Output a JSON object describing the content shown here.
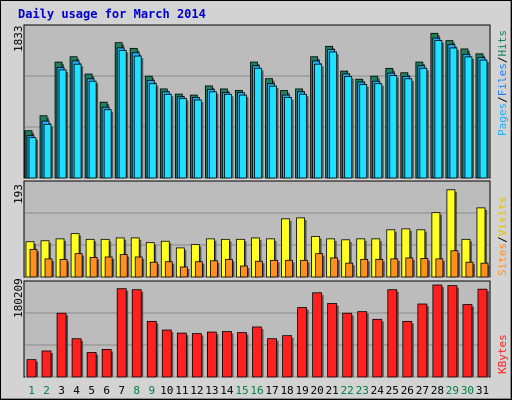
{
  "title": "Daily usage for March 2014",
  "colors": {
    "hits": "#1f7f5f",
    "pages": "#20e0ff",
    "files": "#20b0ff",
    "visits": "#ffff20",
    "sites": "#ff9020",
    "kbytes": "#ff2020",
    "plot_bg": "#bcbcbc",
    "weekend_label": "#008040",
    "weekday_label": "#000000"
  },
  "panels": {
    "top": {
      "max_label": "1833",
      "legend": [
        "Pages",
        "/",
        "Files",
        "/",
        "Hits"
      ]
    },
    "middle": {
      "max_label": "193",
      "legend": [
        "Sites",
        "/",
        "Visits"
      ]
    },
    "bottom": {
      "max_label": "180209",
      "legend": [
        "KBytes"
      ]
    }
  },
  "chart_data": {
    "type": "bar",
    "title": "Daily usage for March 2014",
    "categories": [
      "1",
      "2",
      "3",
      "4",
      "5",
      "6",
      "7",
      "8",
      "9",
      "10",
      "11",
      "12",
      "13",
      "14",
      "15",
      "16",
      "17",
      "18",
      "19",
      "20",
      "21",
      "22",
      "23",
      "24",
      "25",
      "26",
      "27",
      "28",
      "29",
      "30",
      "31"
    ],
    "weekend_days": [
      "1",
      "2",
      "8",
      "9",
      "15",
      "16",
      "22",
      "23",
      "29",
      "30"
    ],
    "series": [
      {
        "name": "Hits",
        "panel": "top",
        "ylim": [
          0,
          1833
        ],
        "values": [
          582,
          766,
          1426,
          1492,
          1279,
          933,
          1665,
          1595,
          1253,
          1096,
          1032,
          1020,
          1133,
          1096,
          1078,
          1426,
          1222,
          1076,
          1096,
          1492,
          1620,
          1315,
          1215,
          1253,
          1349,
          1295,
          1426,
          1780,
          1690,
          1588,
          1528
        ]
      },
      {
        "name": "Files",
        "panel": "top",
        "ylim": [
          0,
          1833
        ],
        "values": [
          520,
          700,
          1360,
          1440,
          1220,
          870,
          1600,
          1540,
          1200,
          1060,
          1000,
          990,
          1090,
          1050,
          1050,
          1380,
          1160,
          1020,
          1060,
          1440,
          1580,
          1280,
          1180,
          1190,
          1290,
          1250,
          1380,
          1720,
          1640,
          1520,
          1480
        ]
      },
      {
        "name": "Pages",
        "panel": "top",
        "ylim": [
          0,
          1833
        ],
        "values": [
          496,
          660,
          1330,
          1400,
          1190,
          840,
          1570,
          1500,
          1160,
          1030,
          980,
          960,
          1060,
          1030,
          1020,
          1350,
          1130,
          990,
          1030,
          1400,
          1550,
          1250,
          1150,
          1160,
          1260,
          1220,
          1350,
          1690,
          1600,
          1490,
          1450
        ]
      },
      {
        "name": "Visits",
        "panel": "middle",
        "ylim": [
          0,
          193
        ],
        "values": [
          74,
          76,
          80,
          91,
          79,
          79,
          82,
          82,
          72,
          75,
          61,
          68,
          80,
          79,
          79,
          82,
          80,
          122,
          124,
          85,
          80,
          78,
          80,
          80,
          99,
          101,
          99,
          135,
          183,
          79,
          145
        ]
      },
      {
        "name": "Sites",
        "panel": "middle",
        "ylim": [
          0,
          193
        ],
        "values": [
          58,
          38,
          37,
          49,
          41,
          42,
          47,
          42,
          31,
          32,
          21,
          32,
          34,
          37,
          23,
          33,
          35,
          35,
          35,
          49,
          40,
          29,
          37,
          37,
          38,
          40,
          39,
          38,
          55,
          31,
          29
        ]
      },
      {
        "name": "KBytes",
        "panel": "bottom",
        "ylim": [
          0,
          180209
        ],
        "values": [
          34000,
          51000,
          125000,
          75000,
          48000,
          54000,
          173000,
          171000,
          109000,
          92000,
          86000,
          85000,
          88000,
          89000,
          87000,
          98000,
          75000,
          81000,
          136000,
          165000,
          144000,
          125000,
          128000,
          113000,
          171000,
          109000,
          143000,
          180209,
          179000,
          142000,
          172000
        ]
      }
    ]
  }
}
